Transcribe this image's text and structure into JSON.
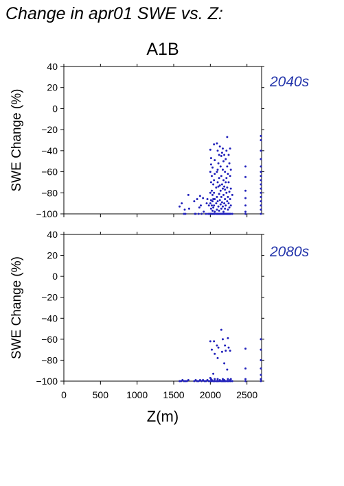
{
  "title": "Change in apr01 SWE vs. Z:",
  "colors": {
    "points": "#2222bb",
    "period_label": "#2233aa",
    "axes": "#000000"
  },
  "chart_data": [
    {
      "type": "scatter",
      "title": "A1B",
      "period": "2040s",
      "xlabel": "",
      "ylabel": "SWE Change (%)",
      "xlim": [
        0,
        2700
      ],
      "ylim": [
        -100,
        40
      ],
      "xticks": [
        0,
        500,
        1000,
        1500,
        2000,
        2500
      ],
      "yticks": [
        40,
        20,
        0,
        -20,
        -40,
        -60,
        -80,
        -100
      ],
      "ytick_labels": [
        "40",
        "20",
        "0",
        "−20",
        "−40",
        "−60",
        "−80",
        "−100"
      ],
      "points": [
        [
          1580,
          -93
        ],
        [
          1610,
          -90
        ],
        [
          1640,
          -100
        ],
        [
          1660,
          -100
        ],
        [
          1700,
          -82
        ],
        [
          1710,
          -95
        ],
        [
          1650,
          -96
        ],
        [
          1780,
          -88
        ],
        [
          1790,
          -100
        ],
        [
          1800,
          -100
        ],
        [
          1820,
          -86
        ],
        [
          1840,
          -100
        ],
        [
          1850,
          -94
        ],
        [
          1860,
          -83
        ],
        [
          1870,
          -92
        ],
        [
          1880,
          -100
        ],
        [
          1900,
          -85
        ],
        [
          1910,
          -98
        ],
        [
          1940,
          -100
        ],
        [
          1950,
          -90
        ],
        [
          1960,
          -86
        ],
        [
          1970,
          -100
        ],
        [
          1980,
          -92
        ],
        [
          1990,
          -100
        ],
        [
          2000,
          -39
        ],
        [
          2000,
          -60
        ],
        [
          2000,
          -80
        ],
        [
          2000,
          -90
        ],
        [
          2000,
          -100
        ],
        [
          2010,
          -47
        ],
        [
          2010,
          -53
        ],
        [
          2010,
          -70
        ],
        [
          2010,
          -87
        ],
        [
          2010,
          -95
        ],
        [
          2010,
          -100
        ],
        [
          2020,
          -64
        ],
        [
          2020,
          -78
        ],
        [
          2020,
          -92
        ],
        [
          2020,
          -100
        ],
        [
          2030,
          -56
        ],
        [
          2030,
          -82
        ],
        [
          2030,
          -88
        ],
        [
          2030,
          -97
        ],
        [
          2030,
          -100
        ],
        [
          2040,
          -72
        ],
        [
          2040,
          -86
        ],
        [
          2040,
          -94
        ],
        [
          2040,
          -100
        ],
        [
          2050,
          -34
        ],
        [
          2050,
          -68
        ],
        [
          2050,
          -80
        ],
        [
          2050,
          -92
        ],
        [
          2050,
          -100
        ],
        [
          2060,
          -49
        ],
        [
          2060,
          -62
        ],
        [
          2060,
          -86
        ],
        [
          2060,
          -98
        ],
        [
          2060,
          -100
        ],
        [
          2080,
          -75
        ],
        [
          2080,
          -90
        ],
        [
          2080,
          -100
        ],
        [
          2090,
          -33
        ],
        [
          2090,
          -60
        ],
        [
          2090,
          -84
        ],
        [
          2090,
          -96
        ],
        [
          2090,
          -100
        ],
        [
          2100,
          -40
        ],
        [
          2100,
          -58
        ],
        [
          2100,
          -70
        ],
        [
          2100,
          -88
        ],
        [
          2100,
          -100
        ],
        [
          2110,
          -52
        ],
        [
          2110,
          -74
        ],
        [
          2110,
          -93
        ],
        [
          2110,
          -100
        ],
        [
          2120,
          -44
        ],
        [
          2120,
          -66
        ],
        [
          2120,
          -81
        ],
        [
          2120,
          -97
        ],
        [
          2120,
          -100
        ],
        [
          2130,
          -36
        ],
        [
          2130,
          -73
        ],
        [
          2130,
          -87
        ],
        [
          2130,
          -100
        ],
        [
          2140,
          -55
        ],
        [
          2140,
          -78
        ],
        [
          2140,
          -91
        ],
        [
          2140,
          -100
        ],
        [
          2150,
          -45
        ],
        [
          2150,
          -64
        ],
        [
          2150,
          -84
        ],
        [
          2150,
          -95
        ],
        [
          2150,
          -100
        ],
        [
          2160,
          -42
        ],
        [
          2160,
          -72
        ],
        [
          2160,
          -89
        ],
        [
          2160,
          -100
        ],
        [
          2170,
          -38
        ],
        [
          2170,
          -58
        ],
        [
          2170,
          -76
        ],
        [
          2170,
          -93
        ],
        [
          2170,
          -100
        ],
        [
          2180,
          -50
        ],
        [
          2180,
          -68
        ],
        [
          2180,
          -82
        ],
        [
          2180,
          -98
        ],
        [
          2180,
          -100
        ],
        [
          2190,
          -44
        ],
        [
          2190,
          -74
        ],
        [
          2190,
          -90
        ],
        [
          2190,
          -100
        ],
        [
          2200,
          -60
        ],
        [
          2200,
          -77
        ],
        [
          2200,
          -86
        ],
        [
          2200,
          -95
        ],
        [
          2200,
          -100
        ],
        [
          2210,
          -48
        ],
        [
          2210,
          -70
        ],
        [
          2210,
          -92
        ],
        [
          2210,
          -100
        ],
        [
          2220,
          -40
        ],
        [
          2220,
          -66
        ],
        [
          2220,
          -80
        ],
        [
          2220,
          -100
        ],
        [
          2230,
          -27
        ],
        [
          2230,
          -55
        ],
        [
          2230,
          -75
        ],
        [
          2230,
          -88
        ],
        [
          2230,
          -100
        ],
        [
          2240,
          -62
        ],
        [
          2240,
          -84
        ],
        [
          2240,
          -96
        ],
        [
          2240,
          -100
        ],
        [
          2250,
          -44
        ],
        [
          2250,
          -70
        ],
        [
          2250,
          -90
        ],
        [
          2250,
          -100
        ],
        [
          2260,
          -52
        ],
        [
          2260,
          -79
        ],
        [
          2260,
          -94
        ],
        [
          2260,
          -100
        ],
        [
          2270,
          -38
        ],
        [
          2270,
          -64
        ],
        [
          2270,
          -86
        ],
        [
          2270,
          -100
        ],
        [
          2280,
          -58
        ],
        [
          2280,
          -76
        ],
        [
          2280,
          -92
        ],
        [
          2280,
          -100
        ],
        [
          2300,
          -82
        ],
        [
          2300,
          -100
        ],
        [
          2480,
          -55
        ],
        [
          2480,
          -65
        ],
        [
          2480,
          -78
        ],
        [
          2480,
          -85
        ],
        [
          2480,
          -92
        ],
        [
          2480,
          -98
        ],
        [
          2480,
          -100
        ],
        [
          2690,
          -26
        ],
        [
          2690,
          -30
        ],
        [
          2690,
          -40
        ],
        [
          2690,
          -48
        ],
        [
          2690,
          -55
        ],
        [
          2690,
          -60
        ],
        [
          2690,
          -64
        ],
        [
          2690,
          -68
        ],
        [
          2690,
          -72
        ],
        [
          2690,
          -76
        ],
        [
          2690,
          -80
        ],
        [
          2690,
          -84
        ],
        [
          2690,
          -88
        ],
        [
          2690,
          -92
        ],
        [
          2690,
          -96
        ],
        [
          2690,
          -100
        ]
      ]
    },
    {
      "type": "scatter",
      "title": "",
      "period": "2080s",
      "xlabel": "Z(m)",
      "ylabel": "SWE Change (%)",
      "xlim": [
        0,
        2700
      ],
      "ylim": [
        -100,
        40
      ],
      "xticks": [
        0,
        500,
        1000,
        1500,
        2000,
        2500
      ],
      "yticks": [
        40,
        20,
        0,
        -20,
        -40,
        -60,
        -80,
        -100
      ],
      "ytick_labels": [
        "40",
        "20",
        "0",
        "−20",
        "−40",
        "−60",
        "−80",
        "−100"
      ],
      "xtick_labels": [
        "0",
        "500",
        "1000",
        "1500",
        "2000",
        "2500"
      ],
      "points": [
        [
          1580,
          -100
        ],
        [
          1600,
          -100
        ],
        [
          1620,
          -99
        ],
        [
          1640,
          -100
        ],
        [
          1660,
          -100
        ],
        [
          1680,
          -100
        ],
        [
          1700,
          -99
        ],
        [
          1780,
          -100
        ],
        [
          1800,
          -99
        ],
        [
          1820,
          -100
        ],
        [
          1840,
          -100
        ],
        [
          1860,
          -99
        ],
        [
          1880,
          -100
        ],
        [
          1900,
          -99
        ],
        [
          1920,
          -100
        ],
        [
          1940,
          -100
        ],
        [
          1960,
          -99
        ],
        [
          1980,
          -100
        ],
        [
          2000,
          -62
        ],
        [
          2000,
          -97
        ],
        [
          2000,
          -100
        ],
        [
          2010,
          -98
        ],
        [
          2010,
          -100
        ],
        [
          2020,
          -70
        ],
        [
          2020,
          -99
        ],
        [
          2020,
          -100
        ],
        [
          2040,
          -93
        ],
        [
          2040,
          -100
        ],
        [
          2050,
          -62
        ],
        [
          2050,
          -100
        ],
        [
          2060,
          -74
        ],
        [
          2060,
          -98
        ],
        [
          2060,
          -100
        ],
        [
          2080,
          -100
        ],
        [
          2090,
          -66
        ],
        [
          2090,
          -100
        ],
        [
          2100,
          -78
        ],
        [
          2100,
          -98
        ],
        [
          2100,
          -100
        ],
        [
          2110,
          -68
        ],
        [
          2110,
          -100
        ],
        [
          2130,
          -99
        ],
        [
          2130,
          -100
        ],
        [
          2150,
          -51
        ],
        [
          2150,
          -100
        ],
        [
          2160,
          -72
        ],
        [
          2160,
          -100
        ],
        [
          2170,
          -60
        ],
        [
          2170,
          -98
        ],
        [
          2170,
          -100
        ],
        [
          2180,
          -100
        ],
        [
          2190,
          -83
        ],
        [
          2190,
          -99
        ],
        [
          2190,
          -100
        ],
        [
          2200,
          -66
        ],
        [
          2200,
          -100
        ],
        [
          2210,
          -71
        ],
        [
          2210,
          -100
        ],
        [
          2230,
          -89
        ],
        [
          2230,
          -100
        ],
        [
          2240,
          -59
        ],
        [
          2240,
          -98
        ],
        [
          2240,
          -100
        ],
        [
          2250,
          -68
        ],
        [
          2250,
          -100
        ],
        [
          2270,
          -71
        ],
        [
          2270,
          -99
        ],
        [
          2270,
          -100
        ],
        [
          2280,
          -98
        ],
        [
          2280,
          -100
        ],
        [
          2300,
          -100
        ],
        [
          2480,
          -69
        ],
        [
          2480,
          -88
        ],
        [
          2480,
          -98
        ],
        [
          2480,
          -100
        ],
        [
          2690,
          -60
        ],
        [
          2690,
          -70
        ],
        [
          2690,
          -80
        ],
        [
          2690,
          -88
        ],
        [
          2690,
          -94
        ],
        [
          2690,
          -98
        ],
        [
          2690,
          -100
        ]
      ]
    }
  ]
}
